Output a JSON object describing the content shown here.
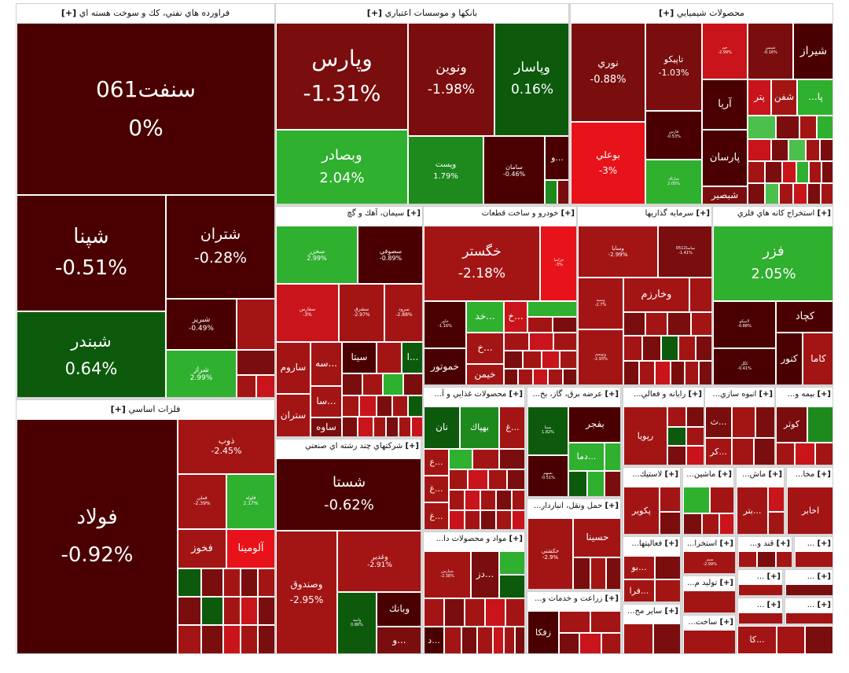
{
  "sectors": {
    "refinery": {
      "title": "فراورده هاي نفتي، كك و سوخت هسته اي",
      "plus": "[+]"
    },
    "banks": {
      "title": "بانكها و موسسات اعتباري",
      "plus": "[+]"
    },
    "chemicals": {
      "title": "محصولات شيميايي",
      "plus": "[+]"
    },
    "basic_metals": {
      "title": "فلزات اساسي",
      "plus": "[+]"
    },
    "cement": {
      "title": "سيمان، آهك و گچ",
      "plus": "[+]"
    },
    "auto": {
      "title": "خودرو و ساخت قطعات",
      "plus": "[+]"
    },
    "investment": {
      "title": "سرمايه گذاريها",
      "plus": "[+]"
    },
    "mining": {
      "title": "استخراج كانه هاي فلزي",
      "plus": "[+]"
    },
    "multi": {
      "title": "شركتهاي چند رشته اي صنعتي",
      "plus": "[+]"
    },
    "food": {
      "title": "محصولات غذايي و آ...",
      "plus": "[+]"
    },
    "power": {
      "title": "عرضه برق، گاز، بخ...",
      "plus": "[+]"
    },
    "it": {
      "title": "رايانه و فعالي...",
      "plus": "[+]"
    },
    "mass": {
      "title": "انبوه سازي...",
      "plus": "[+]"
    },
    "insurance": {
      "title": "بيمه و...",
      "plus": "[+]"
    },
    "transport": {
      "title": "حمل ونقل، انباردار...",
      "plus": "[+]"
    },
    "materials": {
      "title": "مواد و محصولات دا...",
      "plus": "[+]"
    },
    "agri": {
      "title": "زراعت و خدمات و...",
      "plus": "[+]"
    },
    "plastic": {
      "title": "لاستيك...",
      "plus": "[+]"
    },
    "machinery": {
      "title": "ماشين...",
      "plus": "[+]"
    },
    "ores": {
      "title": "ماش...",
      "plus": "[+]"
    },
    "news": {
      "title": "مخا...",
      "plus": "[+]"
    },
    "misc1": {
      "title": "فعاليتها...",
      "plus": "[+]"
    },
    "misc2": {
      "title": "استخرا...",
      "plus": "[+]"
    },
    "misc3": {
      "title": "قند و...",
      "plus": "[+]"
    },
    "misc4": {
      "title": "...",
      "plus": "[+]"
    },
    "misc5": {
      "title": "ساير مح...",
      "plus": "[+]"
    },
    "misc6": {
      "title": "توليد م...",
      "plus": "[+]"
    },
    "misc7": {
      "title": "ساخت...",
      "plus": "[+]"
    },
    "misc8": {
      "title": "...",
      "plus": "[+]"
    },
    "misc9": {
      "title": "...",
      "plus": "[+]"
    },
    "misc10": {
      "title": "...",
      "plus": "[+]"
    },
    "misc11": {
      "title": "...",
      "plus": "[+]"
    }
  },
  "tiles": {
    "sonaft": {
      "symbol": "سنفت061",
      "change": "0%"
    },
    "shepna": {
      "symbol": "شپنا",
      "change": "-0.51%"
    },
    "shtran": {
      "symbol": "شتران",
      "change": "-0.28%"
    },
    "shbandar": {
      "symbol": "شبندر",
      "change": "0.64%"
    },
    "shabriz": {
      "symbol": "شبريز",
      "change": "-0.49%"
    },
    "shiraz2": {
      "symbol": "شراز",
      "change": "2.99%"
    },
    "vpars": {
      "symbol": "وپارس",
      "change": "-1.31%"
    },
    "vnovin": {
      "symbol": "ونوين",
      "change": "-1.98%"
    },
    "vpasar": {
      "symbol": "وپاسار",
      "change": "0.16%"
    },
    "vbsader": {
      "symbol": "وبصادر",
      "change": "2.04%"
    },
    "vest": {
      "symbol": "ويست",
      "change": "1.79%"
    },
    "saman": {
      "symbol": "سامان",
      "change": "-0.46%"
    },
    "vo": {
      "symbol": "و..."
    },
    "nouri": {
      "symbol": "نوري",
      "change": "-0.88%"
    },
    "tapiko": {
      "symbol": "تاپيكو",
      "change": "-1.03%"
    },
    "jam": {
      "symbol": "جم",
      "change": "-2.99%"
    },
    "shimi": {
      "symbol": "شيمي",
      "change": "-0.16%"
    },
    "shiraz": {
      "symbol": "شيراز"
    },
    "arya": {
      "symbol": "آريا"
    },
    "shpetr": {
      "symbol": "پتر"
    },
    "shafan": {
      "symbol": "شفن"
    },
    "pa": {
      "symbol": "...پا"
    },
    "fars": {
      "symbol": "فارس",
      "change": "-0.53%"
    },
    "pars": {
      "symbol": "پارسان"
    },
    "bouali": {
      "symbol": "بوعلي",
      "change": "-3%"
    },
    "khark": {
      "symbol": "شاراك",
      "change": "2.05%"
    },
    "shbasir": {
      "symbol": "شبصير"
    },
    "foulad": {
      "symbol": "فولاد",
      "change": "-0.92%"
    },
    "zob": {
      "symbol": "ذوب",
      "change": "-2.45%"
    },
    "fameli": {
      "symbol": "فملي",
      "change": "-2.39%"
    },
    "felezz": {
      "symbol": "فلوله",
      "change": "2.17%"
    },
    "fkhouz": {
      "symbol": "فخوز"
    },
    "aloumina": {
      "symbol": "آلومينا"
    },
    "sakhaz": {
      "symbol": "سخزر",
      "change": "2.99%"
    },
    "sesoufi": {
      "symbol": "سصوفي",
      "change": "-0.89%"
    },
    "sfars": {
      "symbol": "سفارس",
      "change": "-3%"
    },
    "sshargh": {
      "symbol": "سشرق",
      "change": "-2.97%"
    },
    "srood": {
      "symbol": "سرود",
      "change": "-2.88%"
    },
    "saroum": {
      "symbol": "ساروم"
    },
    "sse": {
      "symbol": "سه..."
    },
    "sita": {
      "symbol": "سيتا"
    },
    "sa": {
      "symbol": "سا..."
    },
    "stran": {
      "symbol": "ستران"
    },
    "saveh": {
      "symbol": "ساوه"
    },
    "sl": {
      "symbol": "ا..."
    },
    "khgostar": {
      "symbol": "خگستر",
      "change": "-2.18%"
    },
    "khzamia": {
      "symbol": "خزاميا",
      "change": "-3%"
    },
    "khaor": {
      "symbol": "خاور",
      "change": "-1.16%"
    },
    "khd": {
      "symbol": "خد..."
    },
    "khk": {
      "symbol": "خ..."
    },
    "khm": {
      "symbol": "خ..."
    },
    "khmotor": {
      "symbol": "خموتور"
    },
    "khemen": {
      "symbol": "خيمن"
    },
    "vsaypa": {
      "symbol": "وسايا",
      "change": "-2.99%"
    },
    "v0512": {
      "symbol": "ساسا0512",
      "change": "-1.41%"
    },
    "vsepah": {
      "symbol": "وسپه",
      "change": "-2.7%"
    },
    "vkharazm": {
      "symbol": "وخارزم"
    },
    "vtoos": {
      "symbol": "وتوسم",
      "change": "-2.93%"
    },
    "fezar": {
      "symbol": "فزر",
      "change": "2.05%"
    },
    "kchad": {
      "symbol": "كچاد"
    },
    "ktousco": {
      "symbol": "لاميكو",
      "change": "-0.88%"
    },
    "kouar": {
      "symbol": "كنور"
    },
    "kama": {
      "symbol": "كاما"
    },
    "kgol": {
      "symbol": "كگل",
      "change": "-0.41%"
    },
    "shasta": {
      "symbol": "شستا",
      "change": "-0.62%"
    },
    "vsandoogh": {
      "symbol": "وصندوق",
      "change": "-2.95%"
    },
    "vghadir": {
      "symbol": "وغدير",
      "change": "-2.91%"
    },
    "vbank": {
      "symbol": "وبانك"
    },
    "vamid": {
      "symbol": "واميد",
      "change": "0.86%"
    },
    "vodot": {
      "symbol": "و..."
    },
    "ghnan": {
      "symbol": "نان"
    },
    "ghpak": {
      "symbol": "بهپاك"
    },
    "ghgh": {
      "symbol": "غ..."
    },
    "ghe1": {
      "symbol": "ع..."
    },
    "ghe2": {
      "symbol": "غ..."
    },
    "ghe3": {
      "symbol": "غ..."
    },
    "bfajr": {
      "symbol": "بفجر"
    },
    "bmapna": {
      "symbol": "بمپنا",
      "change": "1.82%"
    },
    "bsarv": {
      "symbol": "دما..."
    },
    "bsahm": {
      "symbol": "بسهم",
      "change": "-0.51%"
    },
    "rpouya": {
      "symbol": "رپويا"
    },
    "rth": {
      "symbol": "ث..."
    },
    "rkor": {
      "symbol": "كر..."
    },
    "kouter": {
      "symbol": "كوثر"
    },
    "pkavir": {
      "symbol": "پكوير"
    },
    "btr": {
      "symbol": "بتر..."
    },
    "akhbar": {
      "symbol": "اخابر"
    },
    "hkeshti": {
      "symbol": "حكشتي",
      "change": "-2.9%"
    },
    "hsina": {
      "symbol": "حسينا"
    },
    "vspidar": {
      "symbol": "شپارس",
      "change": "-2.38%"
    },
    "dz": {
      "symbol": "دز..."
    },
    "d1": {
      "symbol": "د..."
    },
    "zfaka": {
      "symbol": "زفكا"
    },
    "vbo": {
      "symbol": "بو..."
    },
    "fra": {
      "symbol": "فرا..."
    },
    "sim": {
      "symbol": "سيم",
      "change": "-2.99%"
    },
    "ka": {
      "symbol": "كا..."
    }
  }
}
